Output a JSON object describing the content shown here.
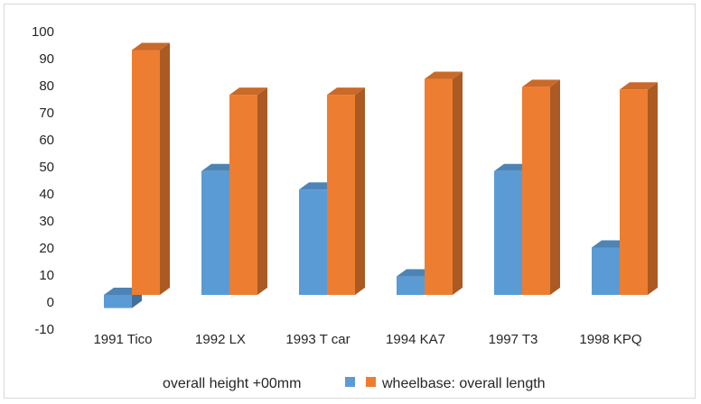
{
  "chart_data": {
    "type": "bar",
    "title": "",
    "xlabel": "",
    "ylabel": "",
    "categories": [
      "1991 Tico",
      "1992 LX",
      "1993 T car",
      "1994 KA7",
      "1997 T3",
      "1998 KPQ"
    ],
    "series": [
      {
        "name": "overall height +00mm",
        "values": [
          -5,
          47,
          40,
          7,
          47,
          18
        ],
        "color": "#5b9bd5"
      },
      {
        "name": "wheelbase: overall length",
        "values": [
          93,
          76,
          76,
          82,
          79,
          78
        ],
        "color": "#ed7d31"
      }
    ],
    "yticks": [
      -10,
      0,
      10,
      20,
      30,
      40,
      50,
      60,
      70,
      80,
      90,
      100
    ],
    "ylim": [
      -10,
      100
    ],
    "grid": false,
    "legend": "bottom",
    "style": "3d-clustered-column"
  }
}
